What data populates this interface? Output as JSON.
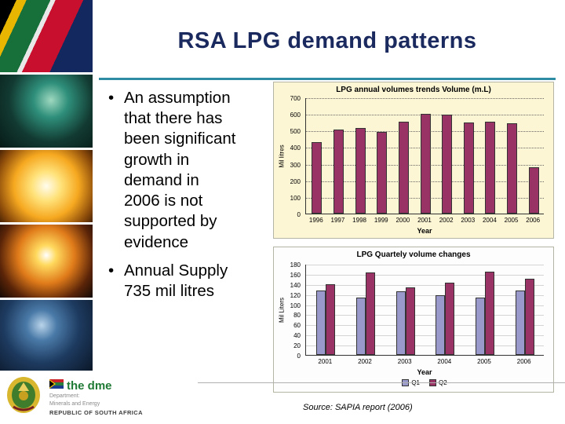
{
  "slide": {
    "title": "RSA LPG demand patterns",
    "bullets": [
      "An assumption\nthat there has\nbeen significant\ngrowth in\ndemand in\n2006 is not\nsupported by\nevidence",
      "Annual Supply\n735 mil litres"
    ],
    "source": "Source: SAPIA report (2006)"
  },
  "footer": {
    "org": "the dme",
    "dept_label": "Department:",
    "dept_name": "Minerals and Energy",
    "country": "REPUBLIC OF SOUTH AFRICA"
  },
  "photo_strip": {
    "items": [
      "south-africa-flag",
      "mining-machinery",
      "sunburst",
      "furnace-glow",
      "miner"
    ]
  },
  "colors": {
    "accent_teal": "#2e8ca3",
    "title_navy": "#1b2a5e",
    "bar_maroon": "#993366",
    "bar_periwinkle": "#9999cc",
    "dme_green": "#1e7a34"
  },
  "chart_data": [
    {
      "type": "bar",
      "title": "LPG annual volumes trends Volume (m.L)",
      "categories": [
        "1996",
        "1997",
        "1998",
        "1999",
        "2000",
        "2001",
        "2002",
        "2003",
        "2004",
        "2005",
        "2006"
      ],
      "values": [
        430,
        505,
        515,
        490,
        555,
        600,
        595,
        550,
        555,
        545,
        280
      ],
      "xlabel": "Year",
      "ylabel": "Mil litres",
      "ylim": [
        0,
        700
      ],
      "ytick_step": 100,
      "bar_color": "#993366",
      "bg": "#fcf6d4",
      "grid": "dotted",
      "legend_position": "none"
    },
    {
      "type": "bar",
      "title": "LPG Quartely volume changes",
      "categories": [
        "2001",
        "2002",
        "2003",
        "2004",
        "2005",
        "2006"
      ],
      "series": [
        {
          "name": "Q1",
          "color": "#9999cc",
          "values": [
            128,
            113,
            125,
            118,
            114,
            127
          ]
        },
        {
          "name": "Q2",
          "color": "#993366",
          "values": [
            140,
            163,
            134,
            143,
            165,
            150
          ]
        }
      ],
      "xlabel": "Year",
      "ylabel": "Mil Liters",
      "ylim": [
        0,
        180
      ],
      "ytick_step": 20,
      "bg": "#fdfdfd",
      "grid": "solid",
      "legend_position": "bottom"
    }
  ]
}
